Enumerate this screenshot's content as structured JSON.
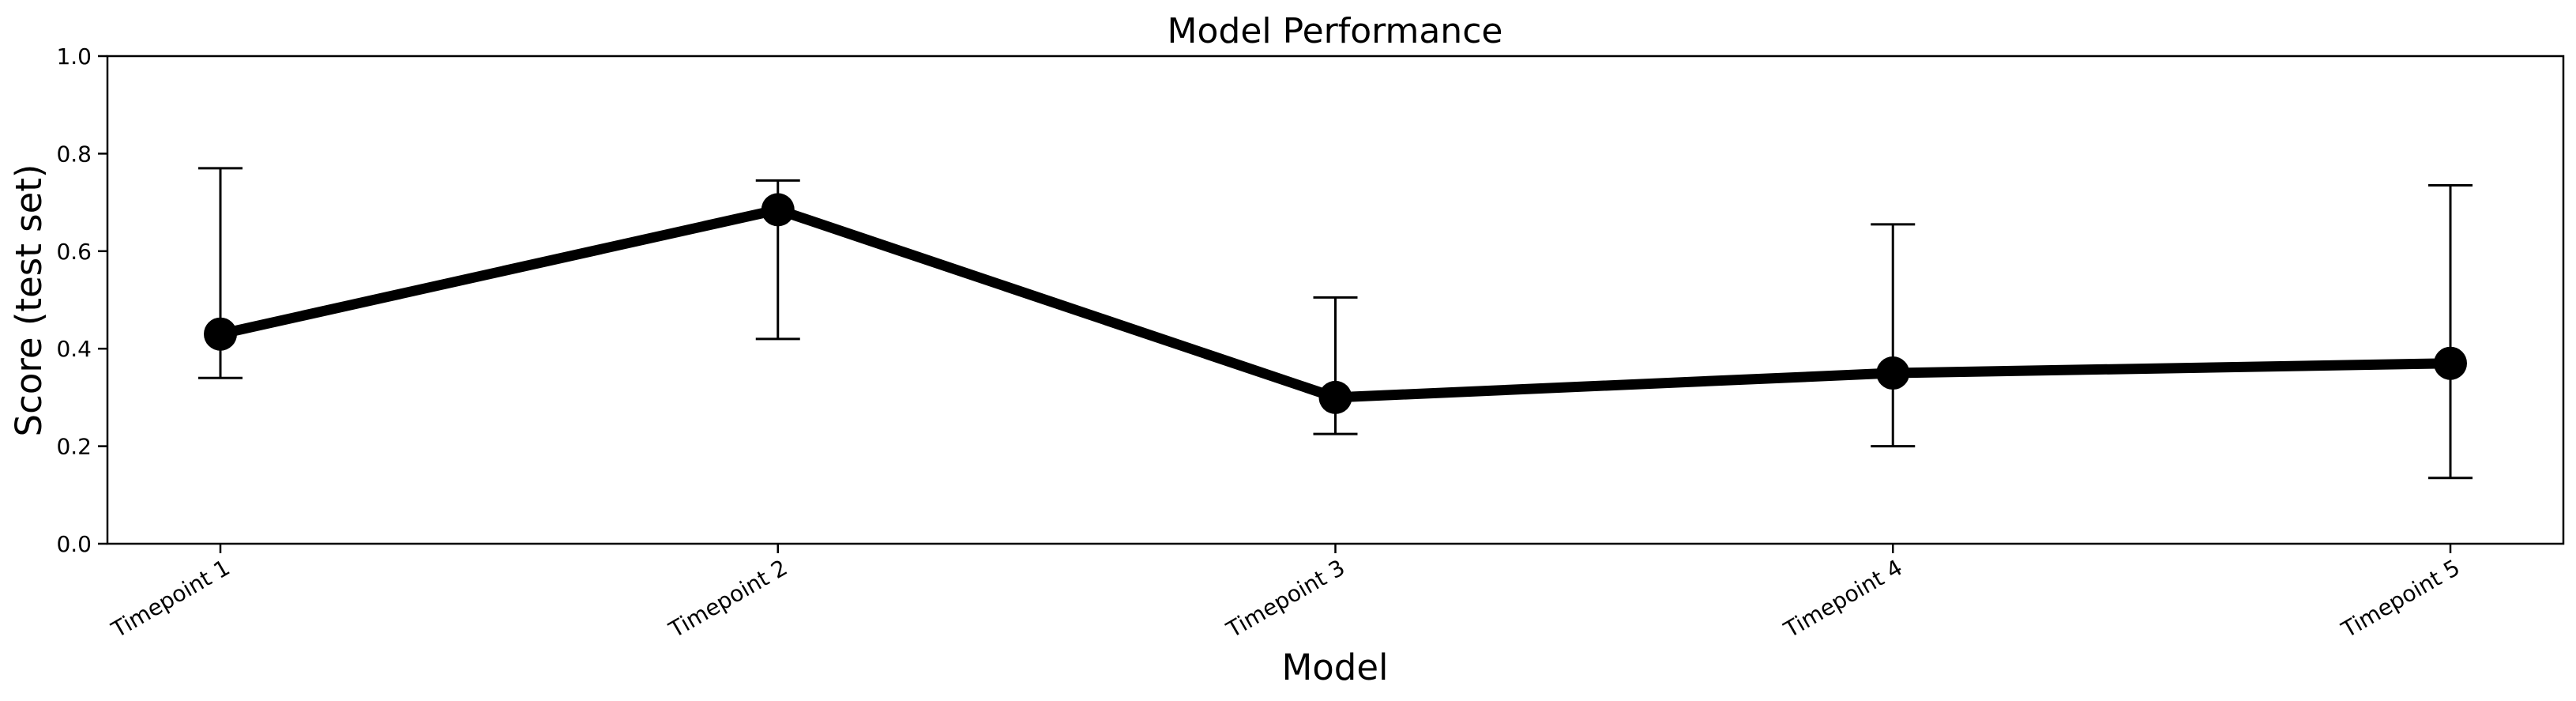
{
  "chart_data": {
    "type": "line",
    "title": "Model Performance",
    "xlabel": "Model",
    "ylabel": "Score (test set)",
    "categories": [
      "Timepoint 1",
      "Timepoint 2",
      "Timepoint 3",
      "Timepoint 4",
      "Timepoint 5"
    ],
    "series": [
      {
        "values": [
          0.43,
          0.685,
          0.3,
          0.35,
          0.37
        ],
        "error_low": [
          0.34,
          0.42,
          0.225,
          0.2,
          0.135
        ],
        "error_high": [
          0.77,
          0.745,
          0.505,
          0.655,
          0.735
        ],
        "color": "#000000"
      }
    ],
    "ylim": [
      0.0,
      1.0
    ],
    "yticks": [
      "0.0",
      "0.2",
      "0.4",
      "0.6",
      "0.8",
      "1.0"
    ],
    "grid": false,
    "legend": false
  }
}
